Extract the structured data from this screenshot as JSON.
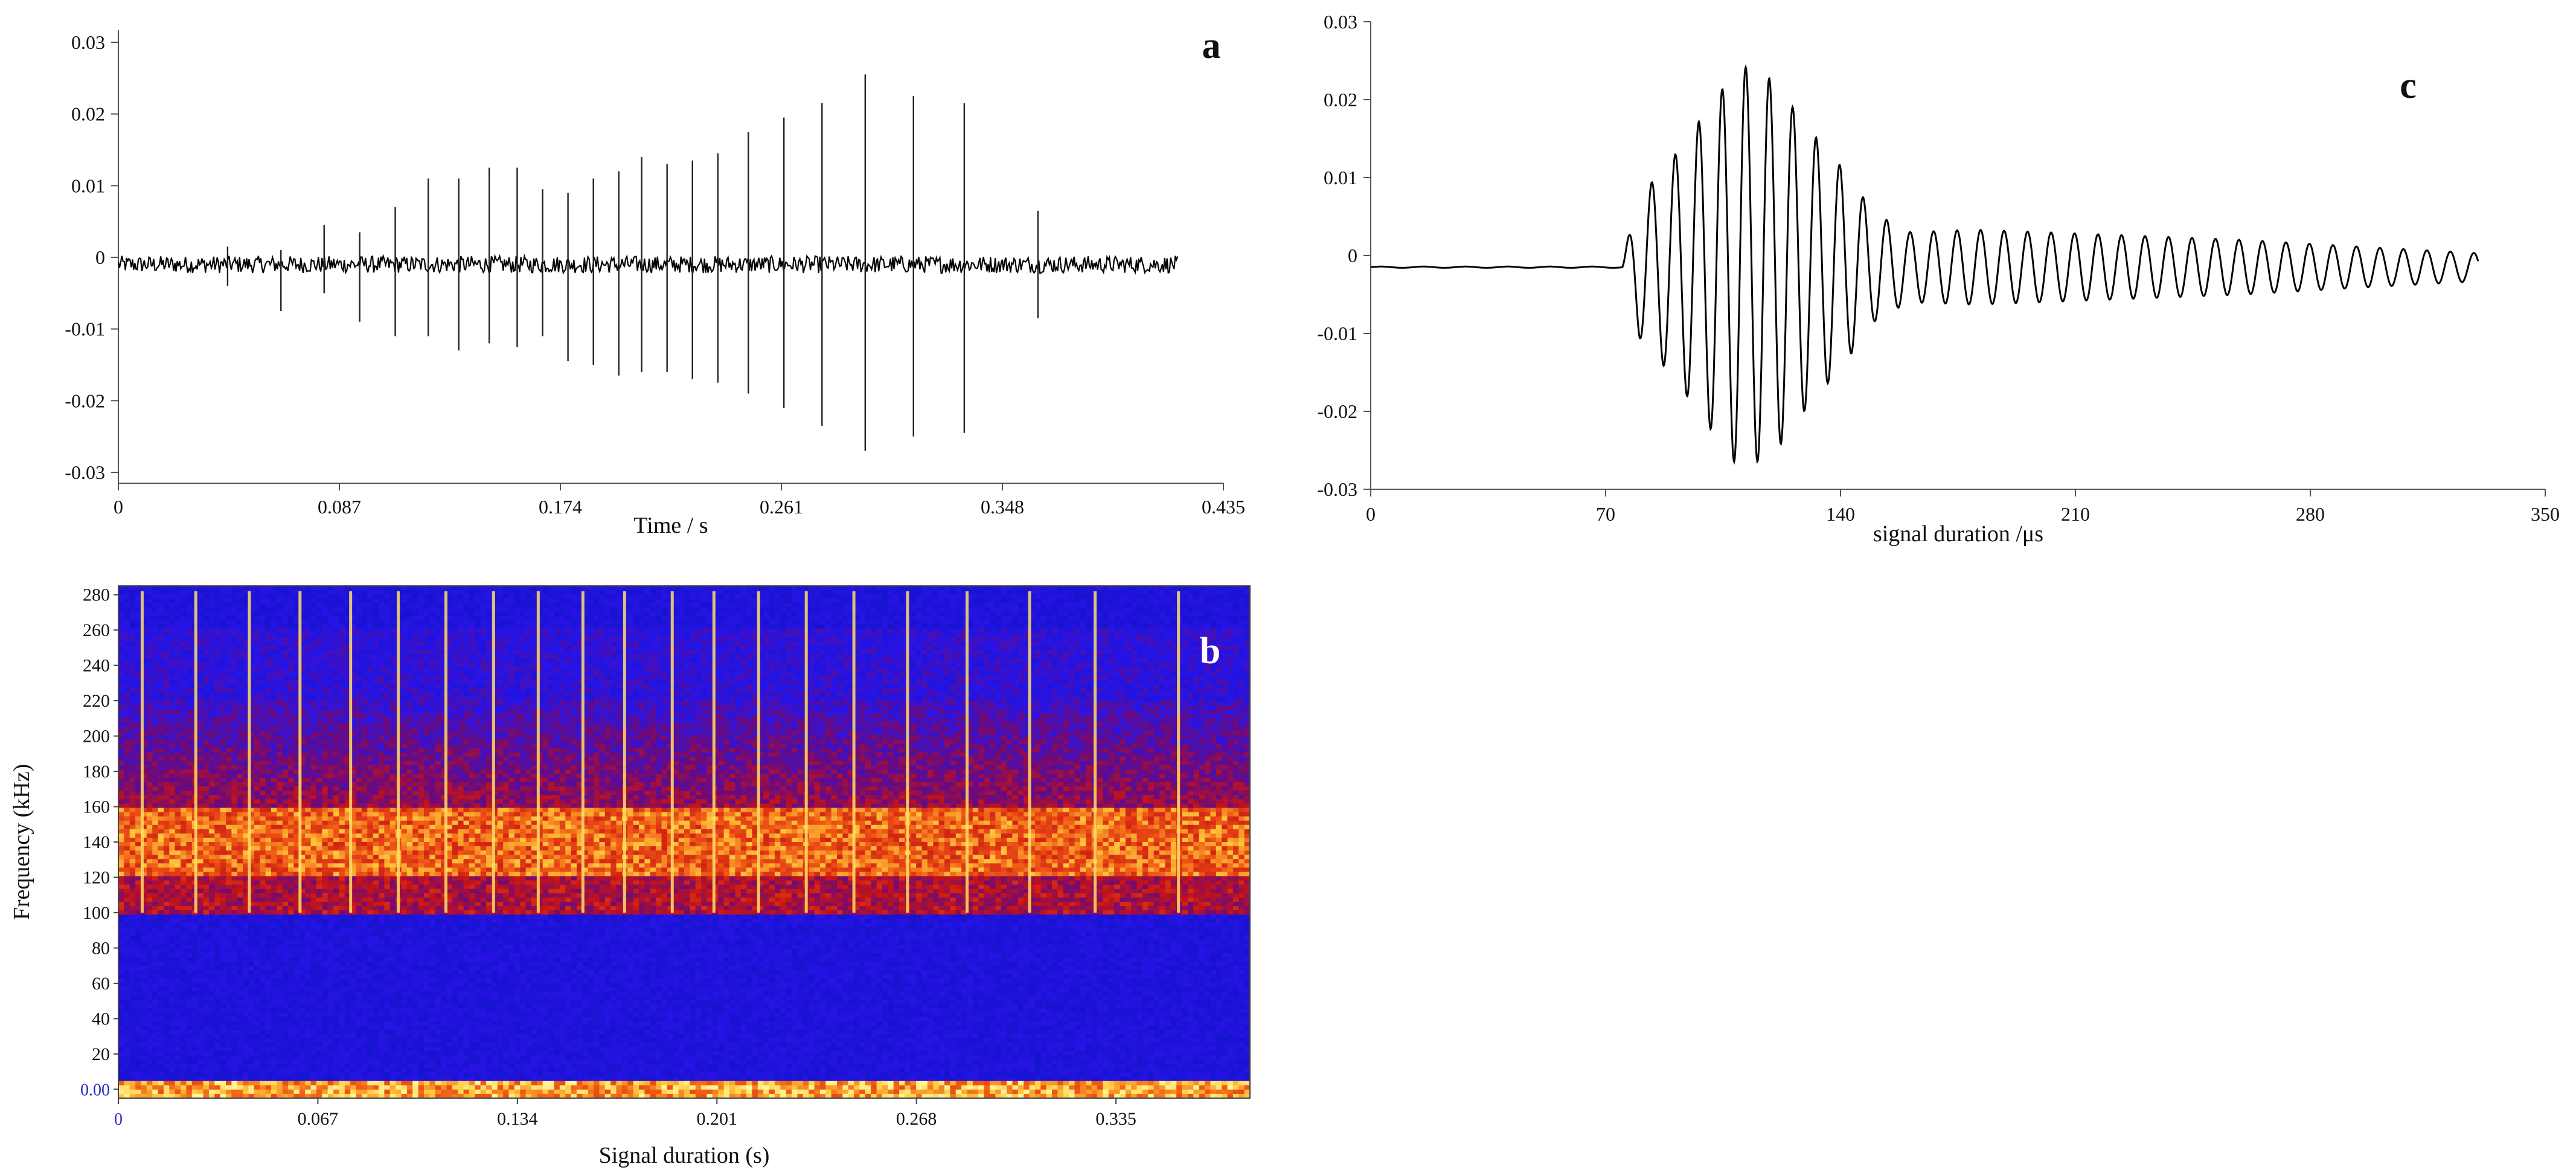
{
  "colors": {
    "trace": "#000000",
    "spectrogram_low": "#1a1ad8",
    "spectrogram_mid": "#d01818",
    "spectrogram_high": "#ffe35a"
  },
  "chart_data": [
    {
      "panel": "a",
      "type": "line",
      "xlabel": "Time / s",
      "ylabel": "",
      "xlim": [
        0,
        0.435
      ],
      "ylim": [
        -0.03,
        0.03
      ],
      "xticks": [
        "0",
        "0.087",
        "0.174",
        "0.261",
        "0.348",
        "0.435"
      ],
      "yticks": [
        "0.03",
        "0.02",
        "0.01",
        "0",
        "-0.01",
        "-0.02",
        "-0.03"
      ],
      "grid": false,
      "baseline": -0.001,
      "noise_amplitude": 0.0012,
      "trace_end": 0.417,
      "pulses": [
        {
          "t": 0.043,
          "max": 0.0015,
          "min": -0.004
        },
        {
          "t": 0.064,
          "max": 0.001,
          "min": -0.0075
        },
        {
          "t": 0.081,
          "max": 0.0045,
          "min": -0.005
        },
        {
          "t": 0.095,
          "max": 0.0035,
          "min": -0.009
        },
        {
          "t": 0.109,
          "max": 0.007,
          "min": -0.011
        },
        {
          "t": 0.122,
          "max": 0.011,
          "min": -0.011
        },
        {
          "t": 0.134,
          "max": 0.011,
          "min": -0.013
        },
        {
          "t": 0.146,
          "max": 0.0125,
          "min": -0.012
        },
        {
          "t": 0.157,
          "max": 0.0125,
          "min": -0.0125
        },
        {
          "t": 0.167,
          "max": 0.0095,
          "min": -0.011
        },
        {
          "t": 0.177,
          "max": 0.009,
          "min": -0.0145
        },
        {
          "t": 0.187,
          "max": 0.011,
          "min": -0.015
        },
        {
          "t": 0.197,
          "max": 0.012,
          "min": -0.0165
        },
        {
          "t": 0.206,
          "max": 0.014,
          "min": -0.016
        },
        {
          "t": 0.216,
          "max": 0.013,
          "min": -0.016
        },
        {
          "t": 0.226,
          "max": 0.0135,
          "min": -0.017
        },
        {
          "t": 0.236,
          "max": 0.0145,
          "min": -0.0175
        },
        {
          "t": 0.248,
          "max": 0.0175,
          "min": -0.019
        },
        {
          "t": 0.262,
          "max": 0.0195,
          "min": -0.021
        },
        {
          "t": 0.277,
          "max": 0.0215,
          "min": -0.0235
        },
        {
          "t": 0.294,
          "max": 0.0255,
          "min": -0.027
        },
        {
          "t": 0.313,
          "max": 0.0225,
          "min": -0.025
        },
        {
          "t": 0.333,
          "max": 0.0215,
          "min": -0.0245
        },
        {
          "t": 0.362,
          "max": 0.0065,
          "min": -0.0085
        }
      ]
    },
    {
      "panel": "b",
      "type": "heatmap",
      "xlabel": "Signal duration (s)",
      "ylabel": "Frequency (kHz)",
      "xlim": [
        0,
        0.38
      ],
      "ylim": [
        -5,
        285
      ],
      "xticks": [
        "0",
        "0.067",
        "0.134",
        "0.201",
        "0.268",
        "0.335"
      ],
      "yticks": [
        "280",
        "260",
        "240",
        "220",
        "200",
        "180",
        "160",
        "140",
        "120",
        "100",
        "80",
        "60",
        "40",
        "20",
        "0.00"
      ],
      "colormap": "blue-red-yellow",
      "band": {
        "core_low": 120,
        "core_high": 160,
        "outer_low": 100,
        "outer_high": 220
      },
      "pulse_times": [
        0.008,
        0.026,
        0.044,
        0.061,
        0.078,
        0.094,
        0.11,
        0.126,
        0.141,
        0.156,
        0.17,
        0.186,
        0.2,
        0.215,
        0.231,
        0.247,
        0.265,
        0.285,
        0.306,
        0.328,
        0.356
      ]
    },
    {
      "panel": "c",
      "type": "line",
      "xlabel": "signal duration /μs",
      "ylabel": "",
      "xlim": [
        0,
        350
      ],
      "ylim": [
        -0.03,
        0.03
      ],
      "xticks": [
        "0",
        "70",
        "140",
        "210",
        "280",
        "350"
      ],
      "yticks": [
        "0.03",
        "0.02",
        "0.01",
        "0",
        "-0.01",
        "-0.02",
        "-0.03"
      ],
      "grid": false,
      "baseline": -0.0015,
      "onset": 75,
      "end": 330,
      "period": 7.0,
      "envelope": [
        {
          "t": 75,
          "a": 0.001
        },
        {
          "t": 80,
          "a": 0.009
        },
        {
          "t": 90,
          "a": 0.014
        },
        {
          "t": 100,
          "a": 0.02
        },
        {
          "t": 110,
          "a": 0.026
        },
        {
          "t": 120,
          "a": 0.024
        },
        {
          "t": 130,
          "a": 0.018
        },
        {
          "t": 140,
          "a": 0.013
        },
        {
          "t": 150,
          "a": 0.007
        },
        {
          "t": 160,
          "a": 0.0045
        },
        {
          "t": 180,
          "a": 0.0048
        },
        {
          "t": 200,
          "a": 0.0045
        },
        {
          "t": 230,
          "a": 0.004
        },
        {
          "t": 260,
          "a": 0.0035
        },
        {
          "t": 300,
          "a": 0.0025
        },
        {
          "t": 330,
          "a": 0.0018
        }
      ]
    }
  ]
}
